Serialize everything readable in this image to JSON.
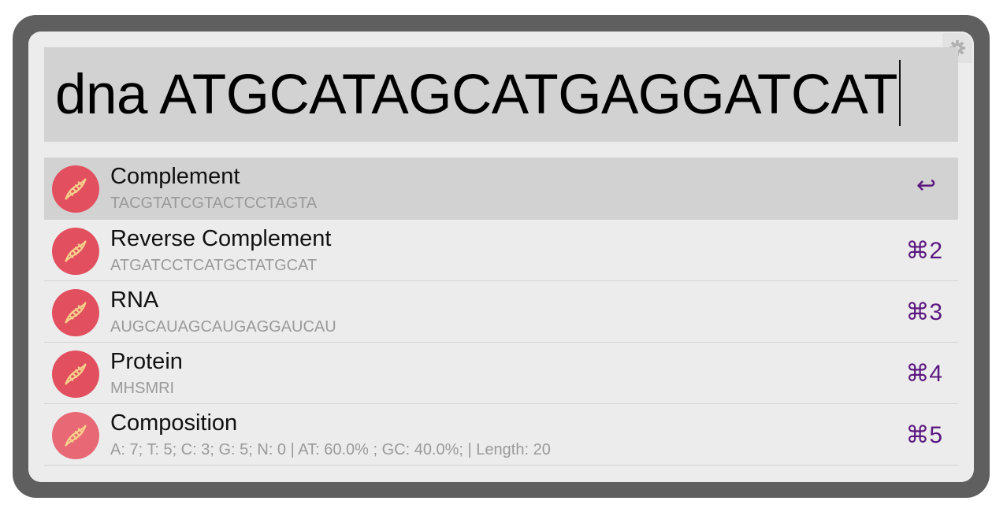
{
  "search": {
    "query": "dna ATGCATAGCATGAGGATCAT"
  },
  "settings": {
    "icon": "gear-icon"
  },
  "results": [
    {
      "title": "Complement",
      "subtitle": "TACGTATCGTACTCCTAGTA",
      "shortcut": "↩",
      "icon": "dna-icon",
      "selected": true
    },
    {
      "title": "Reverse Complement",
      "subtitle": "ATGATCCTCATGCTATGCAT",
      "shortcut": "⌘2",
      "icon": "dna-icon"
    },
    {
      "title": "RNA",
      "subtitle": "AUGCAUAGCAUGAGGAUCAU",
      "shortcut": "⌘3",
      "icon": "dna-icon"
    },
    {
      "title": "Protein",
      "subtitle": "MHSMRI",
      "shortcut": "⌘4",
      "icon": "dna-icon"
    },
    {
      "title": "Composition",
      "subtitle": "A: 7; T: 5; C: 3; G: 5; N: 0 | AT: 60.0% ; GC: 40.0%; | Length: 20",
      "shortcut": "⌘5",
      "icon": "dna-icon"
    }
  ],
  "colors": {
    "accent": "#5b1780",
    "icon_bg": "#e2505f",
    "selected_bg": "#d2d2d2",
    "frame": "#5f5f5f",
    "panel": "#ececec"
  }
}
